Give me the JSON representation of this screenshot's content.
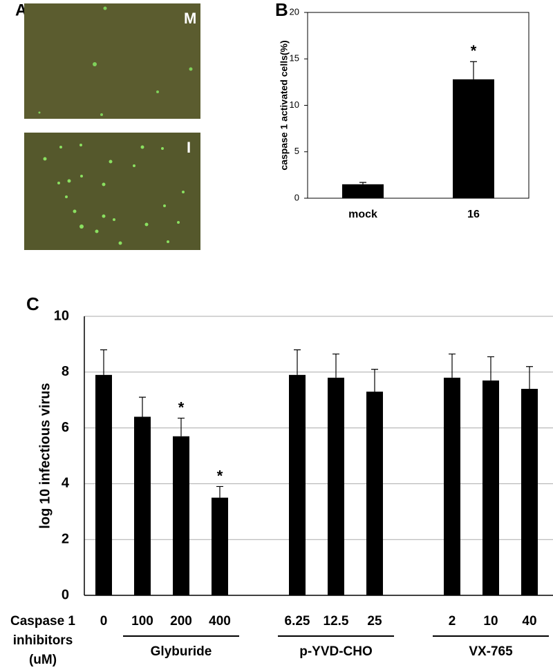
{
  "panel_a": {
    "label": "A",
    "images": [
      {
        "label": "M"
      },
      {
        "label": "I"
      }
    ]
  },
  "chart_data": [
    {
      "type": "bar",
      "panel_label": "B",
      "ylabel": "caspase 1 activated cells(%)",
      "categories": [
        "mock",
        "16"
      ],
      "values": [
        1.5,
        12.8
      ],
      "errors": [
        0.2,
        1.9
      ],
      "color": "#000000",
      "ylim": [
        0,
        20
      ],
      "yticks": [
        0,
        5,
        10,
        15,
        20
      ],
      "grid": false,
      "annotations": [
        {
          "text": "*",
          "category": "16"
        }
      ]
    },
    {
      "type": "bar",
      "panel_label": "C",
      "ylabel": "log 10 infectious virus",
      "categories": [
        "0",
        "100",
        "200",
        "400",
        null,
        "6.25",
        "12.5",
        "25",
        null,
        "2",
        "10",
        "40"
      ],
      "values": [
        7.9,
        6.4,
        5.7,
        3.5,
        null,
        7.9,
        7.8,
        7.3,
        null,
        7.8,
        7.7,
        7.4
      ],
      "errors": [
        0.9,
        0.7,
        0.65,
        0.4,
        null,
        0.9,
        0.85,
        0.8,
        null,
        0.85,
        0.85,
        0.8
      ],
      "color": "#000000",
      "ylim": [
        0,
        10
      ],
      "yticks": [
        0,
        2,
        4,
        6,
        8,
        10
      ],
      "grid": true,
      "annotations": [
        {
          "text": "*",
          "category": "200"
        },
        {
          "text": "*",
          "category": "400"
        }
      ],
      "xlabel_lines": [
        "Caspase 1",
        "inhibitors",
        "(uM)"
      ],
      "groups": [
        {
          "name": "Glyburide",
          "from": "100",
          "to": "400"
        },
        {
          "name": "p-YVD-CHO",
          "from": "6.25",
          "to": "25"
        },
        {
          "name": "VX-765",
          "from": "2",
          "to": "40"
        }
      ]
    }
  ]
}
